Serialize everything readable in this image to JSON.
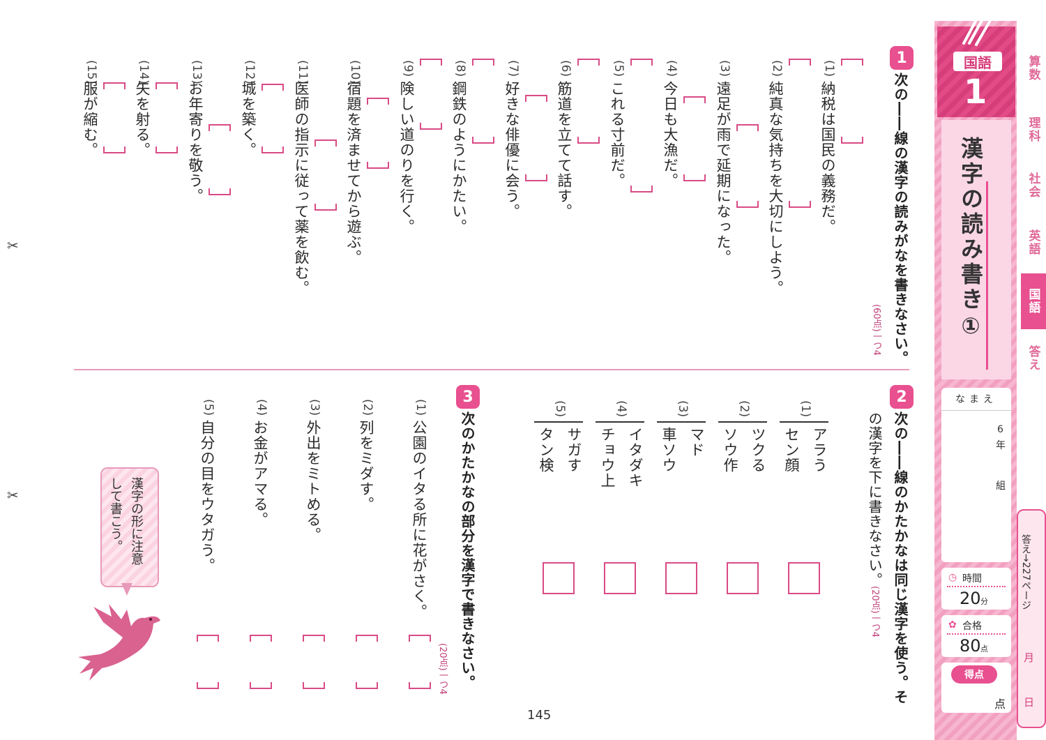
{
  "scissors": [
    "✂",
    "✂"
  ],
  "sidebar": {
    "subject": "国語",
    "number": "1",
    "title": "漢字の読み書き①",
    "name_label": "なまえ",
    "grade": "6",
    "grade_unit": "年",
    "class_unit": "組",
    "time_label": "時間",
    "time_value": "20",
    "time_unit": "分",
    "pass_label": "合格",
    "pass_value": "80",
    "pass_unit": "点",
    "score_label": "得点",
    "score_unit": "点",
    "answer_ref": "答え→227ページ",
    "month": "月",
    "day": "日"
  },
  "tabs": [
    {
      "label": "算数",
      "active": false
    },
    {
      "label": "理科",
      "active": false
    },
    {
      "label": "社会",
      "active": false
    },
    {
      "label": "英語",
      "active": false
    },
    {
      "label": "国語",
      "active": true
    },
    {
      "label": "答え",
      "active": false
    }
  ],
  "q1": {
    "number": "1",
    "instruction": "次の――線の漢字の読みがなを書きなさい。",
    "points": "(60点)一つ4",
    "items": [
      {
        "num": "(1)",
        "text": "納税は国民の義務だ。"
      },
      {
        "num": "(2)",
        "text": "純真な気持ちを大切にしよう。"
      },
      {
        "num": "(3)",
        "text": "遠足が雨で延期になった。"
      },
      {
        "num": "(4)",
        "text": "今日も大漁だ。"
      },
      {
        "num": "(5)",
        "text": "これる寸前だ。"
      },
      {
        "num": "(6)",
        "text": "筋道を立てて話す。"
      },
      {
        "num": "(7)",
        "text": "好きな俳優に会う。"
      },
      {
        "num": "(8)",
        "text": "鋼鉄のようにかたい。"
      },
      {
        "num": "(9)",
        "text": "険しい道のりを行く。"
      },
      {
        "num": "(10)",
        "text": "宿題を済ませてから遊ぶ。"
      },
      {
        "num": "(11)",
        "text": "医師の指示に従って薬を飲む。"
      },
      {
        "num": "(12)",
        "text": "城を築く。"
      },
      {
        "num": "(13)",
        "text": "お年寄りを敬う。"
      },
      {
        "num": "(14)",
        "text": "矢を射る。"
      },
      {
        "num": "(15)",
        "text": "服が縮む。"
      }
    ]
  },
  "q2": {
    "number": "2",
    "instruction_line1": "次の――線のかたかなは同じ漢字を使う。そ",
    "instruction_line2": "の漢字を下に書きなさい。",
    "points": "(20点)一つ4",
    "items": [
      {
        "num": "(1)",
        "a": "アラう",
        "b": "セン顔"
      },
      {
        "num": "(2)",
        "a": "ツクる",
        "b": "ソウ作"
      },
      {
        "num": "(3)",
        "a": "マド",
        "b": "車ソウ"
      },
      {
        "num": "(4)",
        "a": "イタダキ",
        "b": "チョウ上"
      },
      {
        "num": "(5)",
        "a": "サガす",
        "b": "タン検"
      }
    ]
  },
  "q3": {
    "number": "3",
    "instruction": "次のかたかなの部分を漢字で書きなさい。",
    "points": "(20点)一つ4",
    "items": [
      {
        "num": "(1)",
        "text": "公園のイタる所に花がさく。"
      },
      {
        "num": "(2)",
        "text": "列をミダす。"
      },
      {
        "num": "(3)",
        "text": "外出をミトめる。"
      },
      {
        "num": "(4)",
        "text": "お金がアマる。"
      },
      {
        "num": "(5)",
        "text": "自分の目をウタガう。"
      }
    ]
  },
  "hint": {
    "line1": "漢字の形に注意",
    "line2": "して書こう。"
  },
  "page_number": "145"
}
